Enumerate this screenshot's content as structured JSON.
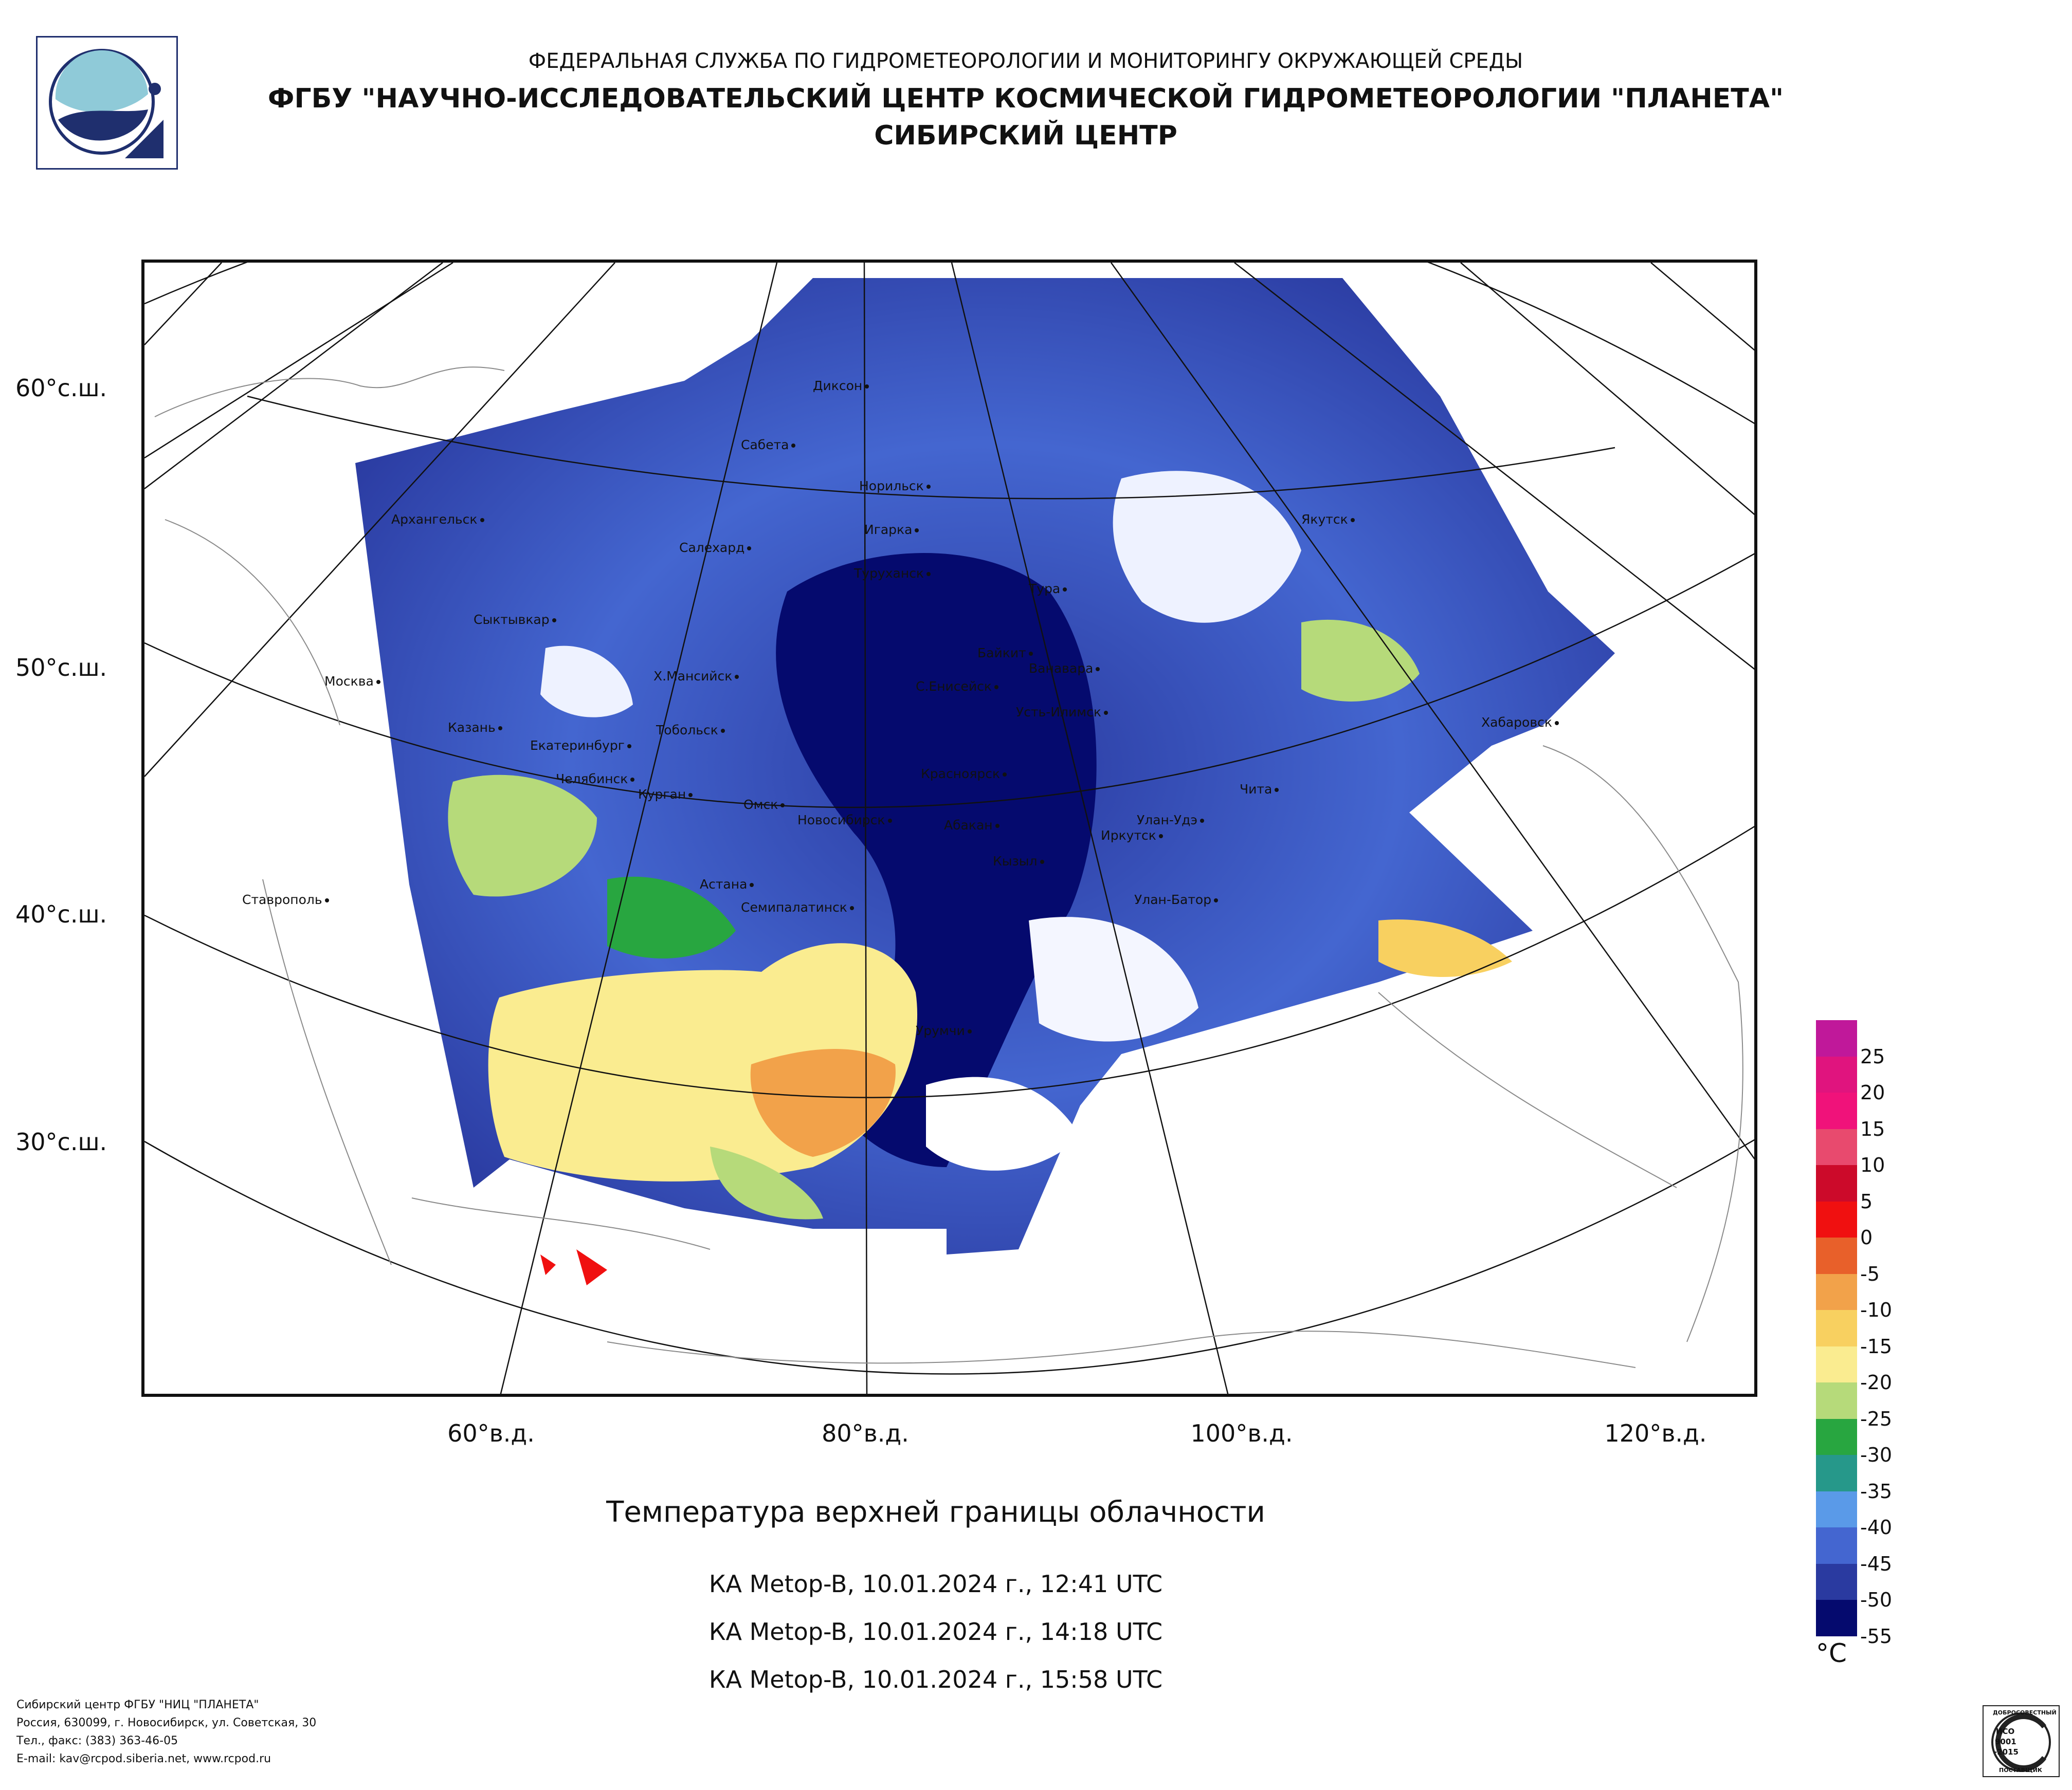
{
  "header": {
    "line1": "ФЕДЕРАЛЬНАЯ СЛУЖБА ПО ГИДРОМЕТЕОРОЛОГИИ И МОНИТОРИНГУ ОКРУЖАЮЩЕЙ СРЕДЫ",
    "line2": "ФГБУ \"НАУЧНО-ИССЛЕДОВАТЕЛЬСКИЙ ЦЕНТР КОСМИЧЕСКОЙ ГИДРОМЕТЕОРОЛОГИИ \"ПЛАНЕТА\"",
    "line3": "СИБИРСКИЙ ЦЕНТР"
  },
  "lat_labels": [
    "60°с.ш.",
    "50°с.ш.",
    "40°с.ш.",
    "30°с.ш."
  ],
  "lon_labels": [
    "60°в.д.",
    "80°в.д.",
    "100°в.д.",
    "120°в.д."
  ],
  "cities": {
    "dikson": "Диксон",
    "sabeta": "Сабета",
    "norilsk": "Норильск",
    "arkhangelsk": "Архангельск",
    "salekhard": "Салехард",
    "igarka": "Игарка",
    "turukhansk": "Туруханск",
    "yakutsk": "Якутск",
    "tura": "Тура",
    "syktyvkar": "Сыктывкар",
    "baykit": "Байкит",
    "vanavara": "Ванавара",
    "moskva": "Москва",
    "khmansiysk": "Х.Мансийск",
    "seniseysk": "С.Енисейск",
    "ustilimsk": "Усть-Илимск",
    "khabarovsk": "Хабаровск",
    "kazan": "Казань",
    "tobolsk": "Тобольск",
    "ekaterinburg": "Екатеринбург",
    "krasnoyarsk": "Красноярск",
    "chelyabinsk": "Челябинск",
    "chita": "Чита",
    "kurgan": "Курган",
    "omsk": "Омск",
    "novosibirsk": "Новосибирск",
    "abakan": "Абакан",
    "ulanude": "Улан-Удэ",
    "irkutsk": "Иркутск",
    "kyzyl": "Кызыл",
    "astana": "Астана",
    "stavropol": "Ставрополь",
    "ulanbator": "Улан-Батор",
    "semipalatinsk": "Семипалатинск",
    "urumqi": "Урумчи"
  },
  "title": "Температура верхней границы облачности",
  "passes": [
    "КА Metop-B, 10.01.2024 г., 12:41 UTC",
    "КА Metop-B, 10.01.2024 г., 14:18 UTC",
    "КА Metop-B, 10.01.2024 г., 15:58 UTC"
  ],
  "legend": {
    "unit": "°С",
    "ticks": [
      "25",
      "20",
      "15",
      "10",
      "5",
      "0",
      "-5",
      "-10",
      "-15",
      "-20",
      "-25",
      "-30",
      "-35",
      "-40",
      "-45",
      "-50",
      "-55"
    ],
    "colors": [
      "#c0189a",
      "#e0147e",
      "#f0127a",
      "#e84a6e",
      "#cc0a2a",
      "#f01010",
      "#e8602a",
      "#f2a24a",
      "#f8d060",
      "#faec90",
      "#b6da7a",
      "#28a640",
      "#26988a",
      "#5a9ae8",
      "#4466d0",
      "#2a3aa0",
      "#050a6e"
    ]
  },
  "footer": {
    "line1": "Сибирский центр ФГБУ \"НИЦ \"ПЛАНЕТА\"",
    "line2": "Россия, 630099, г. Новосибирск, ул. Советская, 30",
    "line3": "Тел., факс: (383) 363-46-05",
    "line4": "E-mail: kav@rcpod.siberia.net, www.rcpod.ru"
  },
  "badge": {
    "top": "ДОБРОСОВЕСТНЫЙ",
    "iso1": "ИСО",
    "iso2": "9001",
    "iso3": "-2015",
    "bottom": "ПОСТАВЩИК"
  }
}
